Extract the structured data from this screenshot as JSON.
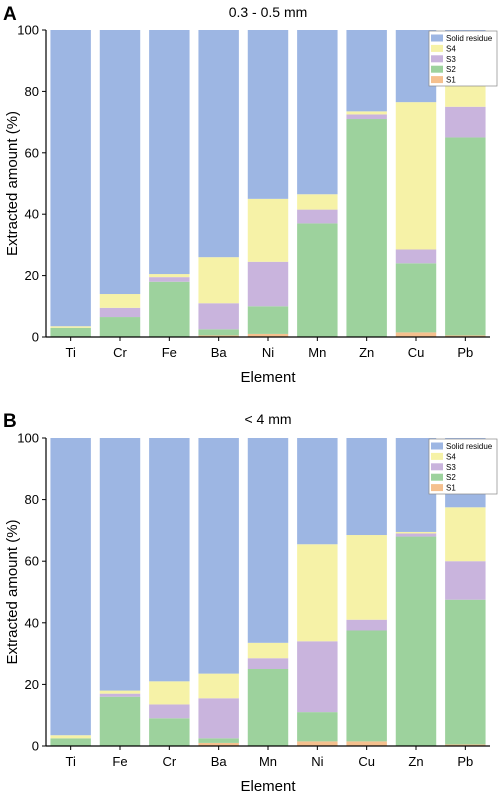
{
  "colors": {
    "S1": "#f5c08e",
    "S2": "#9dd29d",
    "S3": "#c9b4dd",
    "S4": "#f6f2a7",
    "Solid residue": "#9db6e3"
  },
  "chart_data": [
    {
      "type": "bar",
      "stacked": true,
      "panel_label": "A",
      "title": "0.3 - 0.5 mm",
      "xlabel": "Element",
      "ylabel": "Extracted amount (%)",
      "ylim": [
        0,
        100
      ],
      "yticks": [
        0,
        20,
        40,
        60,
        80,
        100
      ],
      "grid": false,
      "legend_position": "top-right",
      "legend_order": [
        "Solid residue",
        "S4",
        "S3",
        "S2",
        "S1"
      ],
      "categories": [
        "Ti",
        "Cr",
        "Fe",
        "Ba",
        "Ni",
        "Mn",
        "Zn",
        "Cu",
        "Pb"
      ],
      "series": [
        {
          "name": "S1",
          "values": [
            0,
            0,
            0,
            0.5,
            1,
            0,
            0,
            1.5,
            0.5
          ]
        },
        {
          "name": "S2",
          "values": [
            3,
            6.5,
            18,
            2,
            9,
            37,
            71,
            22.5,
            64.5
          ]
        },
        {
          "name": "S3",
          "values": [
            0,
            3,
            1.5,
            8.5,
            14.5,
            4.5,
            1.5,
            4.5,
            10
          ]
        },
        {
          "name": "S4",
          "values": [
            0.5,
            4.5,
            1,
            15,
            20.5,
            5,
            1,
            48,
            13.5
          ]
        },
        {
          "name": "Solid residue",
          "values": [
            96.5,
            86,
            79.5,
            74,
            55,
            53.5,
            26.5,
            23.5,
            11.5
          ]
        }
      ]
    },
    {
      "type": "bar",
      "stacked": true,
      "panel_label": "B",
      "title": "< 4 mm",
      "xlabel": "Element",
      "ylabel": "Extracted amount (%)",
      "ylim": [
        0,
        100
      ],
      "yticks": [
        0,
        20,
        40,
        60,
        80,
        100
      ],
      "grid": false,
      "legend_position": "top-right",
      "legend_order": [
        "Solid residue",
        "S4",
        "S3",
        "S2",
        "S1"
      ],
      "categories": [
        "Ti",
        "Fe",
        "Cr",
        "Ba",
        "Mn",
        "Ni",
        "Cu",
        "Zn",
        "Pb"
      ],
      "series": [
        {
          "name": "S1",
          "values": [
            0,
            0,
            0,
            1,
            0,
            1.5,
            1.5,
            0,
            0.5
          ]
        },
        {
          "name": "S2",
          "values": [
            2.5,
            16,
            9,
            1.5,
            25,
            9.5,
            36,
            68,
            47
          ]
        },
        {
          "name": "S3",
          "values": [
            0,
            1,
            4.5,
            13,
            3.5,
            23,
            3.5,
            1,
            12.5
          ]
        },
        {
          "name": "S4",
          "values": [
            1,
            1,
            7.5,
            8,
            5,
            31.5,
            27.5,
            0.5,
            17.5
          ]
        },
        {
          "name": "Solid residue",
          "values": [
            96.5,
            82,
            79,
            76.5,
            66.5,
            34.5,
            31.5,
            30.5,
            22.5
          ]
        }
      ]
    }
  ]
}
